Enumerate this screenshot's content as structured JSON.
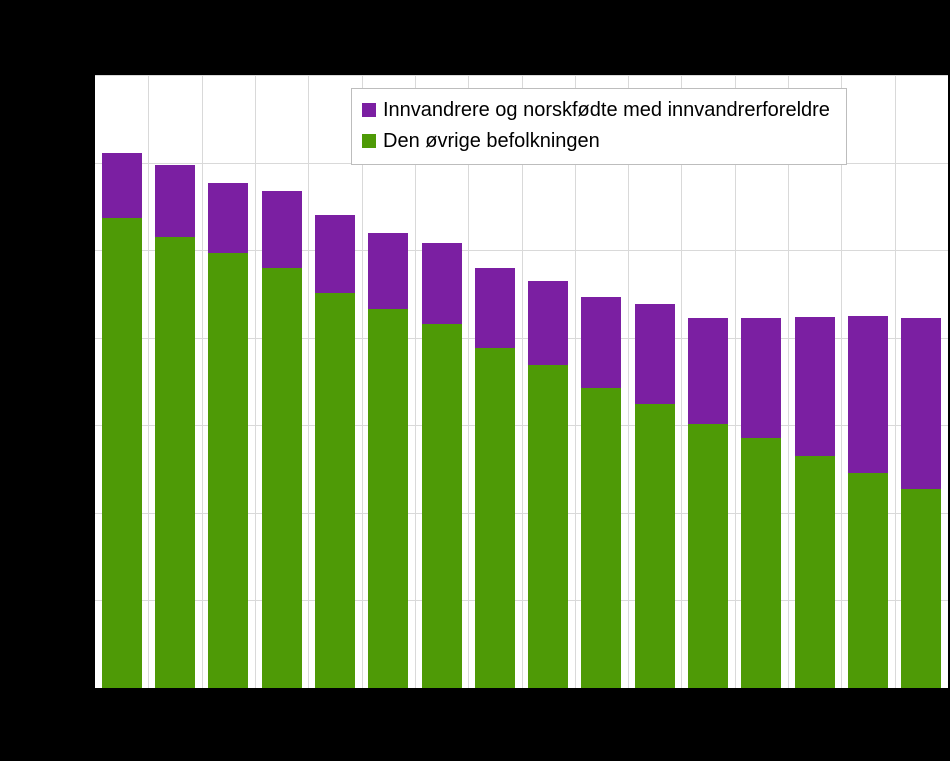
{
  "chart_data": {
    "type": "bar",
    "stacked": true,
    "title": "",
    "xlabel": "",
    "ylabel": "",
    "categories": [
      "",
      "",
      "",
      "",
      "",
      "",
      "",
      "",
      "",
      "",
      "",
      "",
      "",
      "",
      "",
      ""
    ],
    "series": [
      {
        "name": "Den øvrige befolkningen",
        "color": "#4e9a06",
        "values": [
          5.37,
          5.15,
          4.97,
          4.8,
          4.51,
          4.33,
          4.16,
          3.88,
          3.69,
          3.43,
          3.24,
          3.01,
          2.85,
          2.65,
          2.45,
          2.27
        ]
      },
      {
        "name": "Innvandrere og norskfødte med innvandrerforeldre",
        "color": "#7b1fa2",
        "values": [
          0.74,
          0.82,
          0.8,
          0.88,
          0.89,
          0.87,
          0.92,
          0.92,
          0.96,
          1.04,
          1.14,
          1.22,
          1.38,
          1.59,
          1.8,
          1.96
        ]
      }
    ],
    "ylim": [
      0,
      7
    ],
    "y_gridline_step": 1,
    "grid": true,
    "legend_position": "top-inside",
    "legend_order": [
      "Innvandrere og norskfødte med innvandrerforeldre",
      "Den øvrige befolkningen"
    ],
    "colors": {
      "page_background": "#000000",
      "plot_background": "#ffffff",
      "grid": "#d9d9d9",
      "legend_border": "#bdbdbd"
    }
  }
}
